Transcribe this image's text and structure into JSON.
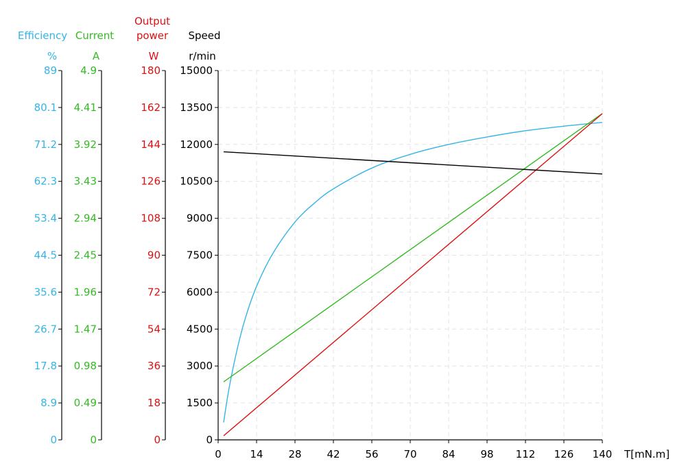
{
  "chart_data": {
    "type": "line",
    "x_axis": {
      "label": "T[mN.m]",
      "ticks": [
        0,
        14,
        28,
        42,
        56,
        70,
        84,
        98,
        112,
        126,
        140
      ],
      "range": [
        0,
        140
      ]
    },
    "axes": [
      {
        "key": "eff",
        "title": "Efficiency",
        "unit": "%",
        "color": "#33b5e5",
        "ticks": [
          "0",
          "8.9",
          "17.8",
          "26.7",
          "35.6",
          "44.5",
          "53.4",
          "62.3",
          "71.2",
          "80.1",
          "89"
        ],
        "range": [
          0,
          89
        ]
      },
      {
        "key": "cur",
        "title": "Current",
        "unit": "A",
        "color": "#33bb22",
        "ticks": [
          "0",
          "0.49",
          "0.98",
          "1.47",
          "1.96",
          "2.45",
          "2.94",
          "3.43",
          "3.92",
          "4.41",
          "4.9"
        ],
        "range": [
          0,
          4.9
        ]
      },
      {
        "key": "pow",
        "title": [
          "Output",
          "power"
        ],
        "unit": "W",
        "color": "#dd1111",
        "ticks": [
          "0",
          "18",
          "36",
          "54",
          "72",
          "90",
          "108",
          "126",
          "144",
          "162",
          "180"
        ],
        "range": [
          0,
          180
        ]
      },
      {
        "key": "spd",
        "title": "Speed",
        "unit": "r/min",
        "color": "#000000",
        "ticks": [
          "0",
          "1500",
          "3000",
          "4500",
          "6000",
          "7500",
          "9000",
          "10500",
          "12000",
          "13500",
          "15000"
        ],
        "range": [
          0,
          15000
        ]
      }
    ],
    "series": [
      {
        "axis": "eff",
        "color": "#33b5e5",
        "x": [
          2,
          4,
          7,
          10,
          14,
          20,
          28,
          35,
          42,
          56,
          70,
          84,
          98,
          112,
          126,
          140
        ],
        "y": [
          4.2,
          12.5,
          22,
          29.5,
          37,
          45,
          52.5,
          57,
          60.5,
          65.5,
          68.8,
          71.2,
          73,
          74.5,
          75.6,
          76.5
        ]
      },
      {
        "axis": "cur",
        "color": "#33bb22",
        "x": [
          2,
          140
        ],
        "y": [
          0.77,
          4.33
        ]
      },
      {
        "axis": "pow",
        "color": "#dd1111",
        "x": [
          2,
          140
        ],
        "y": [
          2,
          159
        ]
      },
      {
        "axis": "spd",
        "color": "#000000",
        "x": [
          2,
          140
        ],
        "y": [
          11700,
          10800
        ]
      }
    ],
    "grid": true
  }
}
